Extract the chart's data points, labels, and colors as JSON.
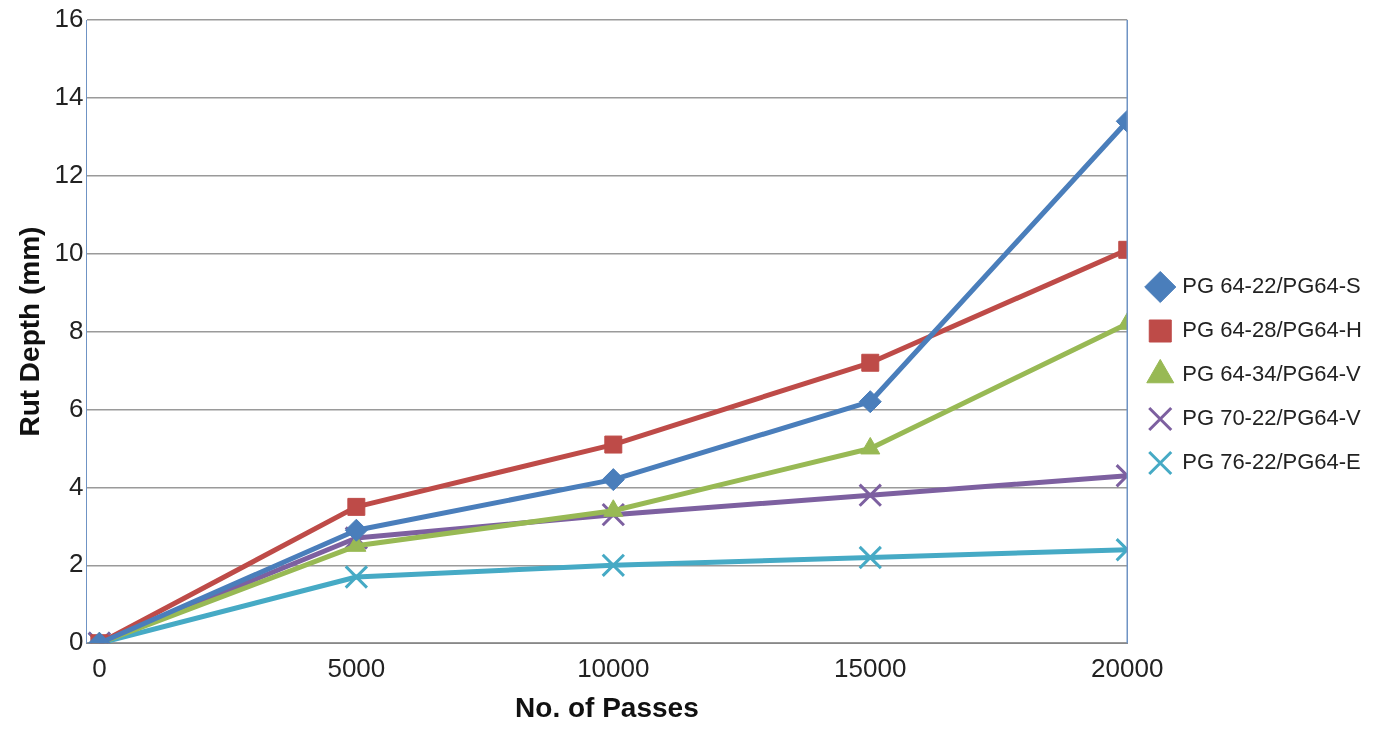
{
  "chart_data": {
    "type": "line",
    "xlabel": "No. of Passes",
    "ylabel": "Rut Depth (mm)",
    "x": [
      0,
      5000,
      10000,
      15000,
      20000
    ],
    "series": [
      {
        "name": "PG 64-22/PG64-S",
        "color": "#4a7ebb",
        "marker": "diamond",
        "values": [
          0,
          2.9,
          4.2,
          6.2,
          13.4
        ]
      },
      {
        "name": "PG 64-28/PG64-H",
        "color": "#be4b48",
        "marker": "square",
        "values": [
          0,
          3.5,
          5.1,
          7.2,
          10.1
        ]
      },
      {
        "name": "PG 64-34/PG64-V",
        "color": "#98b954",
        "marker": "triangle",
        "values": [
          0,
          2.5,
          3.4,
          5.0,
          8.2
        ]
      },
      {
        "name": "PG 70-22/PG64-V",
        "color": "#7d60a0",
        "marker": "cross",
        "values": [
          0,
          2.7,
          3.3,
          3.8,
          4.3
        ]
      },
      {
        "name": "PG 76-22/PG64-E",
        "color": "#46aac5",
        "marker": "cross",
        "values": [
          0,
          1.7,
          2.0,
          2.2,
          2.4
        ]
      }
    ],
    "xlim": [
      -250,
      20000
    ],
    "xticks": [
      0,
      5000,
      10000,
      15000,
      20000
    ],
    "ylim": [
      0,
      16
    ],
    "yticks": [
      0,
      2,
      4,
      6,
      8,
      10,
      12,
      14,
      16
    ],
    "grid": "y",
    "legend": "right",
    "line_style": "solid"
  }
}
